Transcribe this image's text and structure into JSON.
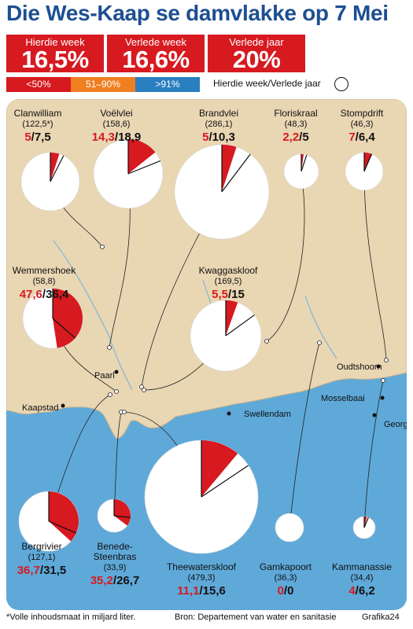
{
  "title": "Die Wes-Kaap se damvlakke op 7 Mei",
  "summary": [
    {
      "label": "Hierdie week",
      "value": "16,5%"
    },
    {
      "label": "Verlede week",
      "value": "16,6%"
    },
    {
      "label": "Verlede jaar",
      "value": "20%"
    }
  ],
  "legend": {
    "items": [
      {
        "label": "<50%",
        "color": "#d71920"
      },
      {
        "label": "51–90%",
        "color": "#f07f22"
      },
      {
        "label": ">91%",
        "color": "#2a7fc1"
      }
    ],
    "pie_caption": "Hierdie week/Verlede jaar"
  },
  "chart_data": {
    "type": "pie",
    "title": "Die Wes-Kaap se damvlakke op 7 Mei",
    "series_meaning": [
      "this_week_pct",
      "last_year_pct"
    ],
    "dams": [
      {
        "name": "Clanwilliam",
        "capacity": "(122,5*)",
        "this_week": 5,
        "last_year": 7.5,
        "this_week_label": "5",
        "last_year_label": "7,5"
      },
      {
        "name": "Voëlvlei",
        "capacity": "(158,6)",
        "this_week": 14.3,
        "last_year": 18.9,
        "this_week_label": "14,3",
        "last_year_label": "18,9"
      },
      {
        "name": "Brandvlei",
        "capacity": "(286,1)",
        "this_week": 5,
        "last_year": 10.3,
        "this_week_label": "5",
        "last_year_label": "10,3"
      },
      {
        "name": "Floriskraal",
        "capacity": "(48,3)",
        "this_week": 2.2,
        "last_year": 5,
        "this_week_label": "2,2",
        "last_year_label": "5"
      },
      {
        "name": "Stompdrift",
        "capacity": "(46,3)",
        "this_week": 7,
        "last_year": 6.4,
        "this_week_label": "7",
        "last_year_label": "6,4"
      },
      {
        "name": "Wemmershoek",
        "capacity": "(58,8)",
        "this_week": 47.6,
        "last_year": 36.4,
        "this_week_label": "47,6",
        "last_year_label": "36,4"
      },
      {
        "name": "Kwaggaskloof",
        "capacity": "(169,5)",
        "this_week": 5.5,
        "last_year": 15,
        "this_week_label": "5,5",
        "last_year_label": "15"
      },
      {
        "name": "Bergrivier",
        "capacity": "(127,1)",
        "this_week": 36.7,
        "last_year": 31.5,
        "this_week_label": "36,7",
        "last_year_label": "31,5"
      },
      {
        "name": "Benede-Steenbras",
        "capacity": "(33,9)",
        "this_week": 35.2,
        "last_year": 26.7,
        "this_week_label": "35,2",
        "last_year_label": "26,7"
      },
      {
        "name": "Theewaterskloof",
        "capacity": "(479,3)",
        "this_week": 11.1,
        "last_year": 15.6,
        "this_week_label": "11,1",
        "last_year_label": "15,6"
      },
      {
        "name": "Gamkapoort",
        "capacity": "(36,3)",
        "this_week": 0,
        "last_year": 0,
        "this_week_label": "0",
        "last_year_label": "0"
      },
      {
        "name": "Kammanassie",
        "capacity": "(34,4)",
        "this_week": 4,
        "last_year": 6.2,
        "this_week_label": "4",
        "last_year_label": "6,2"
      }
    ]
  },
  "towns": [
    "Paarl",
    "Kaapstad",
    "Swellendam",
    "Oudtshoorn",
    "Mosselbaai",
    "George"
  ],
  "colors": {
    "title_blue": "#1d4f91",
    "red": "#d71920",
    "sea": "#5fa9d9",
    "land": "#e9d6b3"
  },
  "footer": {
    "note": "*Volle inhoudsmaat in miljard liter.",
    "source": "Bron: Departement van water en sanitasie",
    "credit": "Grafika24"
  }
}
